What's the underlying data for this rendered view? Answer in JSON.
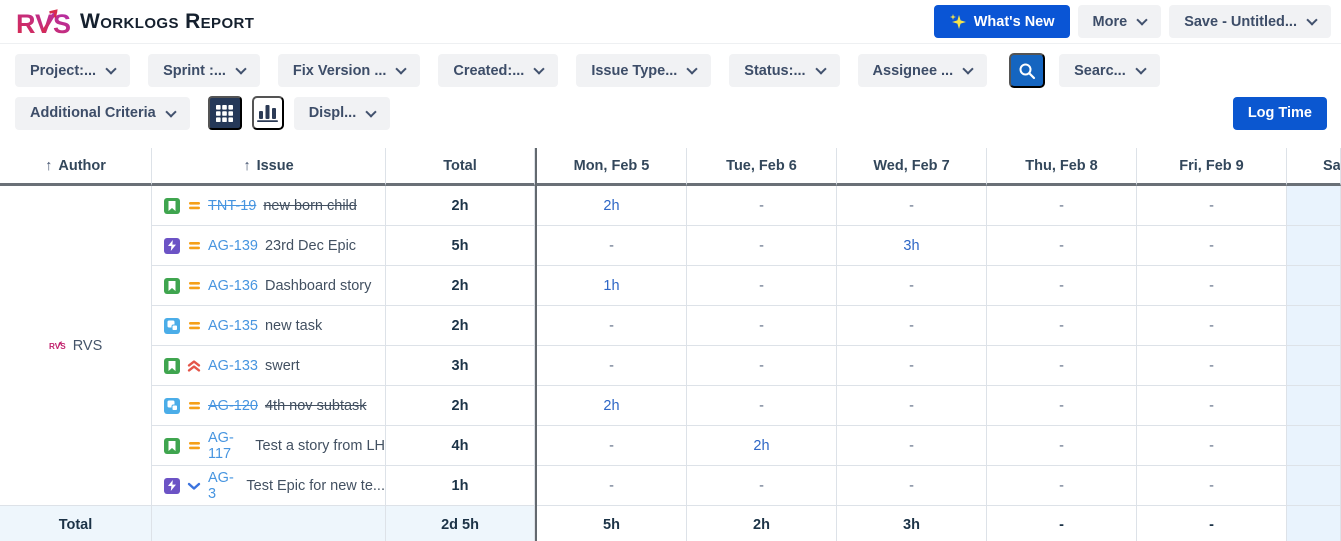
{
  "header": {
    "logo_text": "RVS",
    "title": "Worklogs Report",
    "buttons": {
      "whats_new": "What's New",
      "more": "More",
      "save": "Save - Untitled..."
    }
  },
  "filters": {
    "row1": [
      "Project:...",
      "Sprint :...",
      "Fix Version ...",
      "Created:...",
      "Issue Type...",
      "Status:...",
      "Assignee ..."
    ],
    "search_label": "Searc...",
    "additional_criteria": "Additional Criteria",
    "display_label": "Displ...",
    "log_time": "Log Time"
  },
  "table": {
    "headers": {
      "author": "Author",
      "issue": "Issue",
      "total": "Total",
      "sort_arrow": "↑",
      "days": [
        "Mon, Feb 5",
        "Tue, Feb 6",
        "Wed, Feb 7",
        "Thu, Feb 8",
        "Fri, Feb 9",
        "Sa"
      ]
    },
    "author": {
      "name": "RVS"
    },
    "rows": [
      {
        "type": "story",
        "priority": "medium",
        "key": "TNT-19",
        "summary": "new born child",
        "resolved": true,
        "total": "2h",
        "days": [
          "2h",
          "-",
          "-",
          "-",
          "-"
        ]
      },
      {
        "type": "epic",
        "priority": "medium",
        "key": "AG-139",
        "summary": "23rd Dec Epic",
        "resolved": false,
        "total": "5h",
        "days": [
          "-",
          "-",
          "3h",
          "-",
          "-"
        ]
      },
      {
        "type": "story",
        "priority": "medium",
        "key": "AG-136",
        "summary": "Dashboard story",
        "resolved": false,
        "total": "2h",
        "days": [
          "1h",
          "-",
          "-",
          "-",
          "-"
        ]
      },
      {
        "type": "subtask",
        "priority": "medium",
        "key": "AG-135",
        "summary": "new task",
        "resolved": false,
        "total": "2h",
        "days": [
          "-",
          "-",
          "-",
          "-",
          "-"
        ]
      },
      {
        "type": "story",
        "priority": "high",
        "key": "AG-133",
        "summary": "swert",
        "resolved": false,
        "total": "3h",
        "days": [
          "-",
          "-",
          "-",
          "-",
          "-"
        ]
      },
      {
        "type": "subtask",
        "priority": "medium",
        "key": "AG-120",
        "summary": "4th nov subtask",
        "resolved": true,
        "total": "2h",
        "days": [
          "2h",
          "-",
          "-",
          "-",
          "-"
        ]
      },
      {
        "type": "story",
        "priority": "medium",
        "key": "AG-117",
        "summary": "Test a story from LH",
        "resolved": false,
        "total": "4h",
        "days": [
          "-",
          "2h",
          "-",
          "-",
          "-"
        ]
      },
      {
        "type": "epic",
        "priority": "low",
        "key": "AG-3",
        "summary": "Test Epic for new te...",
        "resolved": false,
        "total": "1h",
        "days": [
          "-",
          "-",
          "-",
          "-",
          "-"
        ]
      }
    ],
    "totals": {
      "label": "Total",
      "total": "2d 5h",
      "days": [
        "5h",
        "2h",
        "3h",
        "-",
        "-"
      ]
    }
  },
  "colors": {
    "accent_blue": "#0b57d0",
    "search_blue": "#1565c0",
    "navy": "#253858",
    "story_green": "#3fa54f",
    "epic_purple": "#6c53c5",
    "subtask_blue": "#4bade8",
    "priority_medium": "#f5a01a",
    "priority_high": "#e45549",
    "priority_low": "#3b73de",
    "weekend_bg": "#e9f3fd",
    "total_row_bg": "#eef6fc",
    "bottom_strip": "#f9f2e3",
    "hour_link": "#2d66c6",
    "issue_key_link": "#4795e0",
    "logo_gradient": [
      "#d92b4b",
      "#b12fae"
    ]
  }
}
